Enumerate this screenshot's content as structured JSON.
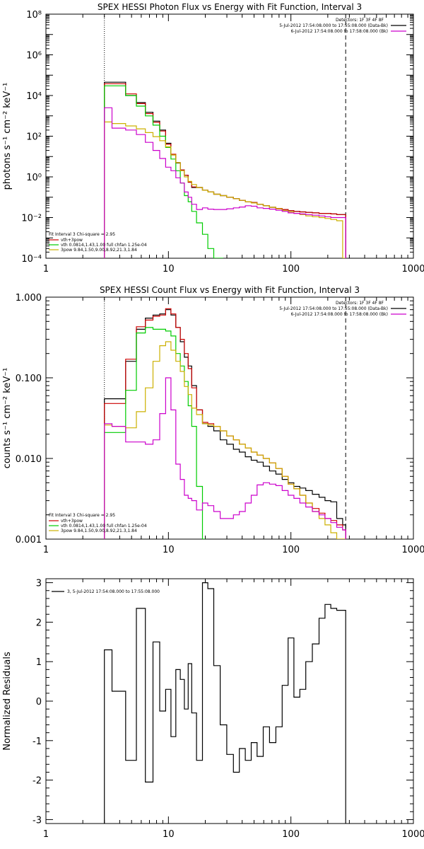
{
  "chart_data": [
    {
      "type": "line",
      "title": "SPEX HESSI Photon Flux vs Energy with Fit Function, Interval 3",
      "ylabel": "photons s⁻¹ cm⁻² keV⁻¹",
      "xscale": "log",
      "yscale": "log",
      "xlim": [
        1,
        1000
      ],
      "ylim": [
        0.0001,
        100000000
      ],
      "x_ticks": [
        1,
        10,
        100,
        1000
      ],
      "x_tick_labels": [
        "1",
        "10",
        "100",
        "1000"
      ],
      "y_ticks": [
        0.0001,
        0.01,
        1,
        100,
        10000,
        1000000,
        100000000
      ],
      "y_tick_labels": [
        "10⁻⁴",
        "10⁻²",
        "10⁰",
        "10²",
        "10⁴",
        "10⁶",
        "10⁸"
      ],
      "vlines": [
        {
          "x": 3,
          "style": "dotted"
        },
        {
          "x": 280,
          "style": "dashed"
        }
      ],
      "legend_header": "Detectors: 1F 3F 4F 8F",
      "legend_entries": [
        {
          "text": "5-Jul-2012 17:54:08.000 to 17:55:08.000 (Data-Bk)",
          "color": "#000000"
        },
        {
          "text": "6-Jul-2012 17:54:08.000 to 17:58:08.000 (Bk)",
          "color": "#cc00cc"
        }
      ],
      "fit_header": "Fit Interval  3   Chi-square = 2.95",
      "fit_entries": [
        {
          "text": "vth+3pow",
          "color": "#cc0000"
        },
        {
          "text": "vth 0.0814,1.43,1.00  full chfan 1.25e-04",
          "color": "#00cc00"
        },
        {
          "text": "3pow 9.84,1.50,9.00,8.92,21.3,1.84",
          "color": "#ccb000"
        }
      ],
      "series": [
        {
          "name": "Data-Bk",
          "color": "#000000",
          "x": [
            3.0,
            4.0,
            5.0,
            6.0,
            7.0,
            8.0,
            9.0,
            10.0,
            11.0,
            12.0,
            13.0,
            14.0,
            15.0,
            16.0,
            18.0,
            20.0,
            22.0,
            25.0,
            28.0,
            32.0,
            36.0,
            40.0,
            45.0,
            50.0,
            56.0,
            63.0,
            71.0,
            80.0,
            90.0,
            100.0,
            112.0,
            125.0,
            140.0,
            160.0,
            180.0,
            200.0,
            224.0,
            250.0,
            280.0
          ],
          "y": [
            45000,
            45000,
            10000,
            4500,
            1500,
            550,
            200,
            45,
            12,
            4.8,
            2.2,
            1.2,
            0.55,
            0.3,
            0.3,
            0.22,
            0.18,
            0.14,
            0.12,
            0.1,
            0.085,
            0.07,
            0.06,
            0.055,
            0.045,
            0.038,
            0.032,
            0.028,
            0.025,
            0.022,
            0.02,
            0.019,
            0.018,
            0.017,
            0.016,
            0.016,
            0.015,
            0.014,
            0.014
          ]
        },
        {
          "name": "vth+3pow",
          "color": "#cc0000",
          "x": [
            3.0,
            4.0,
            5.0,
            6.0,
            7.0,
            8.0,
            9.0,
            10.0,
            11.0,
            12.0,
            13.0,
            14.0,
            15.0,
            16.0,
            18.0,
            20.0,
            22.0,
            25.0,
            28.0,
            32.0,
            36.0,
            40.0,
            45.0,
            50.0,
            56.0,
            63.0,
            71.0,
            80.0,
            90.0,
            100.0,
            112.0,
            125.0,
            140.0,
            160.0,
            180.0,
            200.0,
            224.0,
            250.0,
            280.0
          ],
          "y": [
            38000,
            38000,
            12000,
            4000,
            1300,
            480,
            180,
            40,
            13,
            5,
            2.2,
            1.2,
            0.55,
            0.32,
            0.3,
            0.22,
            0.18,
            0.14,
            0.12,
            0.1,
            0.085,
            0.07,
            0.06,
            0.055,
            0.045,
            0.038,
            0.032,
            0.028,
            0.025,
            0.022,
            0.02,
            0.019,
            0.018,
            0.017,
            0.016,
            0.016,
            0.015,
            0.014,
            0.014
          ]
        },
        {
          "name": "vth",
          "color": "#00cc00",
          "x": [
            3.0,
            4.0,
            5.0,
            6.0,
            7.0,
            8.0,
            9.0,
            10.0,
            11.0,
            12.0,
            13.0,
            14.0,
            15.0,
            16.0,
            18.0,
            20.0,
            22.0,
            25.0,
            28.0
          ],
          "y": [
            30000,
            30000,
            10000,
            3000,
            1000,
            350,
            100,
            28,
            7.5,
            2.0,
            0.5,
            0.12,
            0.06,
            0.02,
            0.0055,
            0.0015,
            0.0003,
            0.0001,
            0.0001
          ]
        },
        {
          "name": "3pow",
          "color": "#ccb000",
          "x": [
            3.0,
            4.0,
            5.0,
            6.0,
            7.0,
            8.0,
            9.0,
            10.0,
            11.0,
            12.0,
            13.0,
            14.0,
            15.0,
            16.0,
            18.0,
            20.0,
            22.0,
            25.0,
            28.0,
            32.0,
            36.0,
            40.0,
            45.0,
            50.0,
            56.0,
            63.0,
            71.0,
            80.0,
            90.0,
            100.0,
            112.0,
            125.0,
            140.0,
            160.0,
            180.0,
            200.0,
            224.0,
            250.0,
            280.0
          ],
          "y": [
            500,
            420,
            320,
            230,
            150,
            95,
            60,
            30,
            12,
            5,
            2.0,
            1.0,
            0.6,
            0.42,
            0.3,
            0.22,
            0.18,
            0.14,
            0.12,
            0.1,
            0.085,
            0.07,
            0.06,
            0.052,
            0.045,
            0.038,
            0.032,
            0.027,
            0.022,
            0.019,
            0.016,
            0.014,
            0.012,
            0.011,
            0.01,
            0.009,
            0.008,
            0.007,
            0.0001
          ]
        },
        {
          "name": "Bk",
          "color": "#cc00cc",
          "x": [
            3.0,
            4.0,
            5.0,
            6.0,
            7.0,
            8.0,
            9.0,
            10.0,
            11.0,
            12.0,
            13.0,
            14.0,
            15.0,
            16.0,
            18.0,
            20.0,
            22.0,
            25.0,
            28.0,
            32.0,
            36.0,
            40.0,
            45.0,
            50.0,
            56.0,
            63.0,
            71.0,
            80.0,
            90.0,
            100.0,
            112.0,
            125.0,
            140.0,
            160.0,
            180.0,
            200.0,
            224.0,
            250.0,
            280.0
          ],
          "y": [
            2500,
            250,
            200,
            120,
            50,
            20,
            8,
            3,
            2,
            0.9,
            0.5,
            0.18,
            0.1,
            0.045,
            0.025,
            0.03,
            0.026,
            0.025,
            0.025,
            0.027,
            0.03,
            0.033,
            0.038,
            0.036,
            0.03,
            0.028,
            0.026,
            0.023,
            0.02,
            0.017,
            0.016,
            0.015,
            0.014,
            0.013,
            0.012,
            0.011,
            0.01,
            0.01,
            0.01
          ]
        }
      ]
    },
    {
      "type": "line",
      "title": "SPEX HESSI Count Flux vs Energy with Fit Function, Interval 3",
      "ylabel": "counts s⁻¹ cm⁻² keV⁻¹",
      "xscale": "log",
      "yscale": "log",
      "xlim": [
        1,
        1000
      ],
      "ylim": [
        0.001,
        1.0
      ],
      "x_ticks": [
        1,
        10,
        100,
        1000
      ],
      "x_tick_labels": [
        "1",
        "10",
        "100",
        "1000"
      ],
      "y_ticks": [
        0.001,
        0.01,
        0.1,
        1.0
      ],
      "y_tick_labels": [
        "0.001",
        "0.010",
        "0.100",
        "1.000"
      ],
      "vlines": [
        {
          "x": 3,
          "style": "dotted"
        },
        {
          "x": 280,
          "style": "dashed"
        }
      ],
      "legend_header": "Detectors: 1F 3F 4F 8F",
      "legend_entries": [
        {
          "text": "5-Jul-2012 17:54:08.000 to 17:55:08.000 (Data-Bk)",
          "color": "#000000"
        },
        {
          "text": "6-Jul-2012 17:54:08.000 to 17:58:08.000 (Bk)",
          "color": "#cc00cc"
        }
      ],
      "fit_header": "Fit Interval  3   Chi-square = 2.95",
      "fit_entries": [
        {
          "text": "vth+3pow",
          "color": "#cc0000"
        },
        {
          "text": "vth 0.0814,1.43,1.00  full chfan 1.25e-04",
          "color": "#00cc00"
        },
        {
          "text": "3pow 9.84,1.50,9.00,8.92,21.3,1.84",
          "color": "#ccb000"
        }
      ],
      "series": [
        {
          "name": "Data-Bk",
          "color": "#000000",
          "x": [
            3.0,
            4.0,
            5.0,
            6.0,
            7.0,
            8.0,
            9.0,
            10.0,
            11.0,
            12.0,
            13.0,
            14.0,
            15.0,
            16.0,
            18.0,
            20.0,
            22.0,
            25.0,
            28.0,
            32.0,
            36.0,
            40.0,
            45.0,
            50.0,
            56.0,
            63.0,
            71.0,
            80.0,
            90.0,
            100.0,
            112.0,
            125.0,
            140.0,
            160.0,
            180.0,
            200.0,
            224.0,
            250.0,
            280.0
          ],
          "y": [
            0.055,
            0.055,
            0.16,
            0.4,
            0.55,
            0.6,
            0.62,
            0.7,
            0.6,
            0.42,
            0.28,
            0.18,
            0.14,
            0.08,
            0.04,
            0.027,
            0.025,
            0.022,
            0.017,
            0.015,
            0.013,
            0.012,
            0.0105,
            0.0095,
            0.009,
            0.008,
            0.007,
            0.0064,
            0.0055,
            0.005,
            0.0045,
            0.0043,
            0.004,
            0.0036,
            0.0033,
            0.003,
            0.0029,
            0.0018,
            0.0015
          ]
        },
        {
          "name": "vth+3pow",
          "color": "#cc0000",
          "x": [
            3.0,
            4.0,
            5.0,
            6.0,
            7.0,
            8.0,
            9.0,
            10.0,
            11.0,
            12.0,
            13.0,
            14.0,
            15.0,
            16.0,
            18.0,
            20.0,
            22.0,
            25.0,
            28.0,
            32.0,
            36.0,
            40.0,
            45.0,
            50.0,
            56.0,
            63.0,
            71.0,
            80.0,
            90.0,
            100.0,
            112.0,
            125.0,
            140.0,
            160.0,
            180.0,
            200.0,
            224.0,
            250.0,
            280.0
          ],
          "y": [
            0.048,
            0.048,
            0.17,
            0.43,
            0.52,
            0.58,
            0.6,
            0.72,
            0.62,
            0.42,
            0.3,
            0.2,
            0.13,
            0.075,
            0.04,
            0.028,
            0.027,
            0.025,
            0.022,
            0.019,
            0.017,
            0.015,
            0.0135,
            0.012,
            0.011,
            0.01,
            0.0088,
            0.0075,
            0.006,
            0.0048,
            0.0042,
            0.0035,
            0.0028,
            0.0024,
            0.0021,
            0.0018,
            0.0017,
            0.0015,
            0.0013
          ]
        },
        {
          "name": "vth",
          "color": "#00cc00",
          "x": [
            3.0,
            4.0,
            5.0,
            6.0,
            7.0,
            8.0,
            9.0,
            10.0,
            11.0,
            12.0,
            13.0,
            14.0,
            15.0,
            16.0,
            18.0,
            20.0
          ],
          "y": [
            0.021,
            0.021,
            0.07,
            0.36,
            0.42,
            0.4,
            0.4,
            0.38,
            0.33,
            0.2,
            0.14,
            0.09,
            0.045,
            0.025,
            0.0045,
            0.0005
          ]
        },
        {
          "name": "3pow",
          "color": "#ccb000",
          "x": [
            3.0,
            4.0,
            5.0,
            6.0,
            7.0,
            8.0,
            9.0,
            10.0,
            11.0,
            12.0,
            13.0,
            14.0,
            15.0,
            16.0,
            18.0,
            20.0,
            22.0,
            25.0,
            28.0,
            32.0,
            36.0,
            40.0,
            45.0,
            50.0,
            56.0,
            63.0,
            71.0,
            80.0,
            90.0,
            100.0,
            112.0,
            125.0,
            140.0,
            160.0,
            180.0,
            200.0,
            224.0,
            250.0,
            280.0
          ],
          "y": [
            0.026,
            0.025,
            0.024,
            0.038,
            0.075,
            0.16,
            0.25,
            0.28,
            0.22,
            0.16,
            0.12,
            0.078,
            0.062,
            0.042,
            0.035,
            0.027,
            0.026,
            0.025,
            0.022,
            0.019,
            0.017,
            0.015,
            0.0135,
            0.012,
            0.011,
            0.01,
            0.0088,
            0.0075,
            0.006,
            0.0048,
            0.0042,
            0.0035,
            0.0028,
            0.0022,
            0.0018,
            0.0015,
            0.0012,
            0.001,
            0.001
          ]
        },
        {
          "name": "Bk",
          "color": "#cc00cc",
          "x": [
            3.0,
            4.0,
            5.0,
            6.0,
            7.0,
            8.0,
            9.0,
            10.0,
            11.0,
            12.0,
            13.0,
            14.0,
            15.0,
            16.0,
            18.0,
            20.0,
            22.0,
            25.0,
            28.0,
            32.0,
            36.0,
            40.0,
            45.0,
            50.0,
            56.0,
            63.0,
            71.0,
            80.0,
            90.0,
            100.0,
            112.0,
            125.0,
            140.0,
            160.0,
            180.0,
            200.0,
            224.0,
            250.0,
            280.0
          ],
          "y": [
            0.027,
            0.025,
            0.016,
            0.016,
            0.015,
            0.017,
            0.036,
            0.1,
            0.04,
            0.0085,
            0.0055,
            0.0035,
            0.0032,
            0.003,
            0.0023,
            0.0028,
            0.0026,
            0.0022,
            0.0018,
            0.0018,
            0.002,
            0.0022,
            0.0028,
            0.0035,
            0.0047,
            0.005,
            0.0048,
            0.0046,
            0.004,
            0.0035,
            0.0032,
            0.0028,
            0.0025,
            0.0022,
            0.002,
            0.0018,
            0.0016,
            0.0014,
            0.0013
          ]
        }
      ]
    },
    {
      "type": "line",
      "ylabel": "Normalized Residuals",
      "xscale": "log",
      "yscale": "linear",
      "xlim": [
        1,
        1000
      ],
      "ylim": [
        -3.1,
        3.1
      ],
      "x_ticks": [
        1,
        10,
        100,
        1000
      ],
      "x_tick_labels": [
        "1",
        "10",
        "100",
        "1000"
      ],
      "y_ticks": [
        -3,
        -2,
        -1,
        0,
        1,
        2,
        3
      ],
      "y_tick_labels": [
        "-3",
        "-2",
        "-1",
        "0",
        "1",
        "2",
        "3"
      ],
      "legend_entries": [
        {
          "text": "3, 5-Jul-2012 17:54:08.000 to 17:55:08.000",
          "color": "#000000"
        }
      ],
      "series": [
        {
          "name": "3, 5-Jul-2012 17:54:08.000 to 17:55:08.000",
          "color": "#000000",
          "x": [
            3.0,
            4.0,
            5.0,
            6.0,
            7.0,
            8.0,
            9.0,
            10.0,
            11.0,
            12.0,
            13.0,
            14.0,
            15.0,
            16.0,
            18.0,
            20.0,
            22.0,
            25.0,
            28.0,
            32.0,
            36.0,
            40.0,
            45.0,
            50.0,
            56.0,
            63.0,
            71.0,
            80.0,
            90.0,
            100.0,
            112.0,
            125.0,
            140.0,
            160.0,
            180.0,
            200.0,
            224.0,
            250.0,
            280.0
          ],
          "y": [
            1.3,
            0.25,
            -1.5,
            2.35,
            -2.05,
            1.5,
            -0.25,
            0.3,
            -0.9,
            0.8,
            0.55,
            -0.2,
            0.95,
            -0.3,
            -1.5,
            3.0,
            2.85,
            0.9,
            -0.6,
            -1.35,
            -1.8,
            -1.2,
            -1.5,
            -1.05,
            -1.4,
            -0.65,
            -1.05,
            -0.65,
            0.4,
            1.6,
            0.1,
            0.3,
            1.0,
            1.45,
            2.1,
            2.45,
            2.35,
            2.3,
            2.3
          ]
        }
      ]
    }
  ]
}
